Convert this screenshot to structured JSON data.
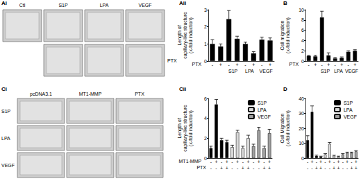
{
  "image_panels": [
    {
      "label": "Ai",
      "columns": [
        "Ctl",
        "S1P",
        "LPA",
        "VEGF"
      ],
      "rows": [
        null,
        "PTX"
      ],
      "cells": [
        [
          true,
          true,
          true,
          true
        ],
        [
          false,
          true,
          true,
          true
        ]
      ]
    },
    {
      "label": "Ci",
      "columns": [
        "pcDNA3.1",
        "MT1-MMP",
        "PTX"
      ],
      "rows": [
        "S1P",
        "LPA",
        "VEGF"
      ],
      "cells": [
        [
          true,
          true,
          true
        ],
        [
          true,
          true,
          true
        ],
        [
          true,
          true,
          true
        ]
      ]
    }
  ],
  "chart_data": [
    {
      "label": "Aii",
      "type": "bar",
      "y_label": "Length of\ncapillary-like structure\n(x-fold induction)",
      "category_rows": [
        {
          "name": "PTX",
          "labels": [
            "-",
            "+",
            "-",
            "+",
            "-",
            "+",
            "-",
            "+"
          ]
        }
      ],
      "groups": [
        null,
        "S1P",
        "LPA",
        "VEGF"
      ],
      "values": [
        1.0,
        0.85,
        2.45,
        1.3,
        1.0,
        0.45,
        1.25,
        1.2
      ],
      "errors": [
        0.25,
        0.15,
        0.5,
        0.15,
        0.1,
        0.1,
        0.15,
        0.15
      ],
      "color": "#000000",
      "ylim": [
        0,
        3
      ],
      "yticks": [
        0,
        1,
        2,
        3
      ],
      "grid": false
    },
    {
      "label": "B",
      "type": "bar",
      "y_label": "Cell migration\n(x-fold induction)",
      "category_rows": [
        {
          "name": "PTX",
          "labels": [
            "-",
            "+",
            "-",
            "+",
            "-",
            "+",
            "-",
            "+"
          ]
        }
      ],
      "groups": [
        null,
        "S1P",
        "LPA",
        "VEGF"
      ],
      "values": [
        1.0,
        0.9,
        8.5,
        1.1,
        0.5,
        0.6,
        1.8,
        2.0
      ],
      "errors": [
        0.1,
        0.2,
        1.2,
        0.5,
        0.2,
        0.2,
        0.2,
        0.2
      ],
      "color": "#000000",
      "ylim": [
        0,
        10
      ],
      "yticks": [
        0,
        2,
        4,
        6,
        8,
        10
      ],
      "grid": false
    },
    {
      "label": "Cii",
      "type": "bar",
      "y_label": "Length of\ncapillary-like structure\n(x-fold induction)",
      "category_rows": [
        {
          "name": "MT1-MMP",
          "labels": [
            "-",
            "+",
            "-",
            "+",
            "-",
            "+",
            "-",
            "+",
            "-",
            "+",
            "-",
            "+"
          ]
        },
        {
          "name": "PTX",
          "labels": [
            "-",
            "-",
            "+",
            "+",
            "-",
            "-",
            "+",
            "+",
            "-",
            "-",
            "+",
            "+"
          ]
        }
      ],
      "series": [
        {
          "name": "S1P",
          "color": "#000000",
          "values": [
            1.0,
            5.4,
            1.8,
            1.6
          ],
          "errors": [
            0.2,
            0.5,
            0.2,
            0.2
          ]
        },
        {
          "name": "LPA",
          "color": "#d9d9d9",
          "values": [
            1.1,
            2.6,
            1.0,
            2.0
          ],
          "errors": [
            0.2,
            0.2,
            0.2,
            0.3
          ]
        },
        {
          "name": "VEGF",
          "color": "#a0a0a0",
          "values": [
            1.2,
            2.8,
            1.0,
            2.5
          ],
          "errors": [
            0.2,
            0.3,
            0.2,
            0.4
          ]
        }
      ],
      "ylim": [
        0,
        6
      ],
      "yticks": [
        0,
        2,
        4,
        6
      ],
      "grid": false,
      "legend": "top-right"
    },
    {
      "label": "D",
      "type": "bar",
      "y_label": "Cell Migration\n(x-fold induction)",
      "category_rows": [
        {
          "labels": [
            "-",
            "+",
            "-",
            "+",
            "-",
            "+",
            "-",
            "+",
            "-",
            "+",
            "-",
            "+"
          ]
        },
        {
          "labels": [
            "-",
            "-",
            "+",
            "+",
            "-",
            "-",
            "+",
            "+",
            "-",
            "-",
            "+",
            "+"
          ]
        }
      ],
      "series": [
        {
          "name": "S1P",
          "color": "#000000",
          "values": [
            12,
            31,
            1.5,
            1
          ],
          "errors": [
            3,
            4,
            0.5,
            0.3
          ]
        },
        {
          "name": "LPA",
          "color": "#d9d9d9",
          "values": [
            2.5,
            9.5,
            1.5,
            1
          ],
          "errors": [
            0.5,
            1,
            0.4,
            0.3
          ]
        },
        {
          "name": "VEGF",
          "color": "#a0a0a0",
          "values": [
            2.5,
            3.5,
            3.5,
            4.5
          ],
          "errors": [
            0.5,
            0.5,
            0.5,
            0.5
          ]
        }
      ],
      "ylim": [
        0,
        40
      ],
      "yticks": [
        0,
        10,
        20,
        30,
        40
      ],
      "grid": false,
      "legend": "top-right"
    }
  ]
}
